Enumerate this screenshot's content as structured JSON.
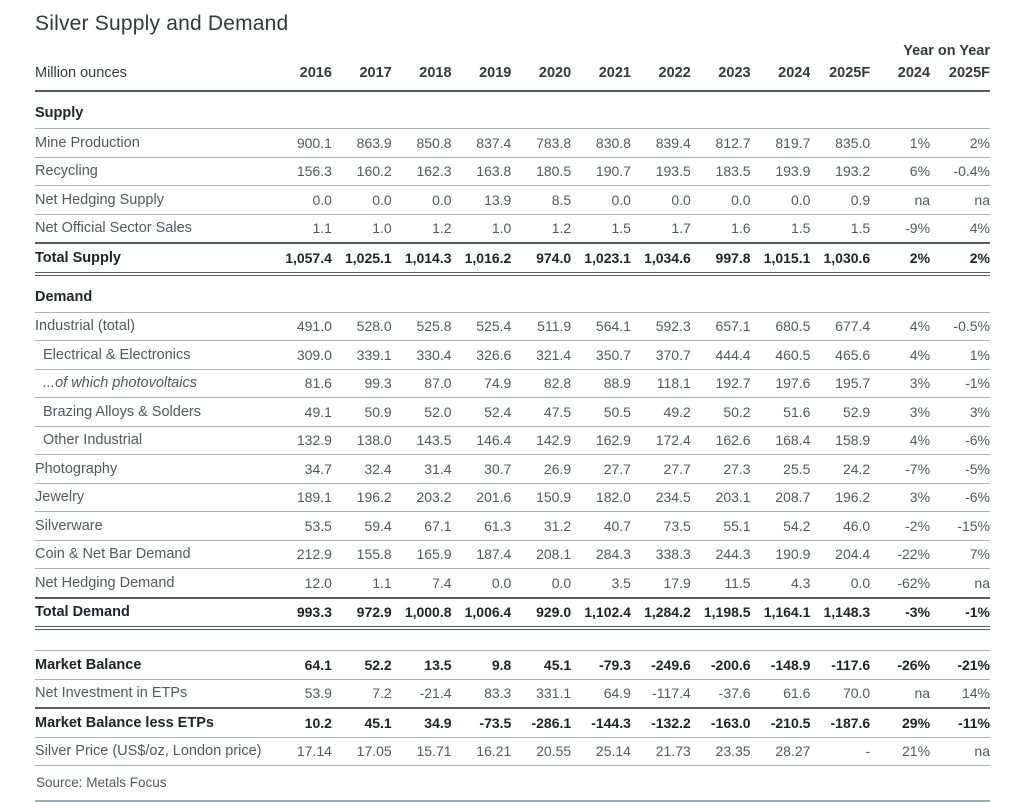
{
  "title": "Silver Supply and Demand",
  "columns": {
    "unit_label": "Million ounces",
    "yoy_label": "Year on Year",
    "years": [
      "2016",
      "2017",
      "2018",
      "2019",
      "2020",
      "2021",
      "2022",
      "2023",
      "2024",
      "2025F"
    ],
    "yoy": [
      "2024",
      "2025F"
    ]
  },
  "sections": [
    {
      "header": "Supply",
      "rows": [
        {
          "label": "Mine Production",
          "style": "normal",
          "values": [
            "900.1",
            "863.9",
            "850.8",
            "837.4",
            "783.8",
            "830.8",
            "839.4",
            "812.7",
            "819.7",
            "835.0"
          ],
          "yoy": [
            "1%",
            "2%"
          ]
        },
        {
          "label": "Recycling",
          "style": "normal",
          "values": [
            "156.3",
            "160.2",
            "162.3",
            "163.8",
            "180.5",
            "190.7",
            "193.5",
            "183.5",
            "193.9",
            "193.2"
          ],
          "yoy": [
            "6%",
            "-0.4%"
          ]
        },
        {
          "label": "Net Hedging Supply",
          "style": "normal",
          "values": [
            "0.0",
            "0.0",
            "0.0",
            "13.9",
            "8.5",
            "0.0",
            "0.0",
            "0.0",
            "0.0",
            "0.9"
          ],
          "yoy": [
            "na",
            "na"
          ]
        },
        {
          "label": "Net Official Sector Sales",
          "style": "normal",
          "values": [
            "1.1",
            "1.0",
            "1.2",
            "1.0",
            "1.2",
            "1.5",
            "1.7",
            "1.6",
            "1.5",
            "1.5"
          ],
          "yoy": [
            "-9%",
            "4%"
          ]
        },
        {
          "label": "Total Supply",
          "style": "total",
          "values": [
            "1,057.4",
            "1,025.1",
            "1,014.3",
            "1,016.2",
            "974.0",
            "1,023.1",
            "1,034.6",
            "997.8",
            "1,015.1",
            "1,030.6"
          ],
          "yoy": [
            "2%",
            "2%"
          ]
        }
      ]
    },
    {
      "header": "Demand",
      "rows": [
        {
          "label": "Industrial (total)",
          "style": "normal",
          "values": [
            "491.0",
            "528.0",
            "525.8",
            "525.4",
            "511.9",
            "564.1",
            "592.3",
            "657.1",
            "680.5",
            "677.4"
          ],
          "yoy": [
            "4%",
            "-0.5%"
          ]
        },
        {
          "label": "Electrical & Electronics",
          "style": "indent",
          "values": [
            "309.0",
            "339.1",
            "330.4",
            "326.6",
            "321.4",
            "350.7",
            "370.7",
            "444.4",
            "460.5",
            "465.6"
          ],
          "yoy": [
            "4%",
            "1%"
          ]
        },
        {
          "label": "...of which photovoltaics",
          "style": "indent-italic",
          "values": [
            "81.6",
            "99.3",
            "87.0",
            "74.9",
            "82.8",
            "88.9",
            "118.1",
            "192.7",
            "197.6",
            "195.7"
          ],
          "yoy": [
            "3%",
            "-1%"
          ]
        },
        {
          "label": "Brazing Alloys & Solders",
          "style": "indent",
          "values": [
            "49.1",
            "50.9",
            "52.0",
            "52.4",
            "47.5",
            "50.5",
            "49.2",
            "50.2",
            "51.6",
            "52.9"
          ],
          "yoy": [
            "3%",
            "3%"
          ]
        },
        {
          "label": "Other Industrial",
          "style": "indent",
          "values": [
            "132.9",
            "138.0",
            "143.5",
            "146.4",
            "142.9",
            "162.9",
            "172.4",
            "162.6",
            "168.4",
            "158.9"
          ],
          "yoy": [
            "4%",
            "-6%"
          ]
        },
        {
          "label": "Photography",
          "style": "normal",
          "values": [
            "34.7",
            "32.4",
            "31.4",
            "30.7",
            "26.9",
            "27.7",
            "27.7",
            "27.3",
            "25.5",
            "24.2"
          ],
          "yoy": [
            "-7%",
            "-5%"
          ]
        },
        {
          "label": "Jewelry",
          "style": "normal",
          "values": [
            "189.1",
            "196.2",
            "203.2",
            "201.6",
            "150.9",
            "182.0",
            "234.5",
            "203.1",
            "208.7",
            "196.2"
          ],
          "yoy": [
            "3%",
            "-6%"
          ]
        },
        {
          "label": "Silverware",
          "style": "normal",
          "values": [
            "53.5",
            "59.4",
            "67.1",
            "61.3",
            "31.2",
            "40.7",
            "73.5",
            "55.1",
            "54.2",
            "46.0"
          ],
          "yoy": [
            "-2%",
            "-15%"
          ]
        },
        {
          "label": "Coin & Net Bar Demand",
          "style": "normal",
          "values": [
            "212.9",
            "155.8",
            "165.9",
            "187.4",
            "208.1",
            "284.3",
            "338.3",
            "244.3",
            "190.9",
            "204.4"
          ],
          "yoy": [
            "-22%",
            "7%"
          ]
        },
        {
          "label": "Net Hedging Demand",
          "style": "normal",
          "values": [
            "12.0",
            "1.1",
            "7.4",
            "0.0",
            "0.0",
            "3.5",
            "17.9",
            "11.5",
            "4.3",
            "0.0"
          ],
          "yoy": [
            "-62%",
            "na"
          ]
        },
        {
          "label": "Total Demand",
          "style": "total",
          "values": [
            "993.3",
            "972.9",
            "1,000.8",
            "1,006.4",
            "929.0",
            "1,102.4",
            "1,284.2",
            "1,198.5",
            "1,164.1",
            "1,148.3"
          ],
          "yoy": [
            "-3%",
            "-1%"
          ]
        }
      ]
    },
    {
      "header": null,
      "gap_before": true,
      "rows": [
        {
          "label": "Market Balance",
          "style": "bold",
          "values": [
            "64.1",
            "52.2",
            "13.5",
            "9.8",
            "45.1",
            "-79.3",
            "-249.6",
            "-200.6",
            "-148.9",
            "-117.6"
          ],
          "yoy": [
            "-26%",
            "-21%"
          ]
        },
        {
          "label": "Net Investment in ETPs",
          "style": "normal",
          "values": [
            "53.9",
            "7.2",
            "-21.4",
            "83.3",
            "331.1",
            "64.9",
            "-117.4",
            "-37.6",
            "61.6",
            "70.0"
          ],
          "yoy": [
            "na",
            "14%"
          ]
        },
        {
          "label": "Market Balance less ETPs",
          "style": "bold-rule-top",
          "values": [
            "10.2",
            "45.1",
            "34.9",
            "-73.5",
            "-286.1",
            "-144.3",
            "-132.2",
            "-163.0",
            "-210.5",
            "-187.6"
          ],
          "yoy": [
            "29%",
            "-11%"
          ]
        },
        {
          "label": "Silver Price (US$/oz, London price)",
          "style": "normal",
          "values": [
            "17.14",
            "17.05",
            "15.71",
            "16.21",
            "20.55",
            "25.14",
            "21.73",
            "23.35",
            "28.27",
            "-"
          ],
          "yoy": [
            "21%",
            "na"
          ]
        }
      ]
    }
  ],
  "source": "Source: Metals Focus"
}
